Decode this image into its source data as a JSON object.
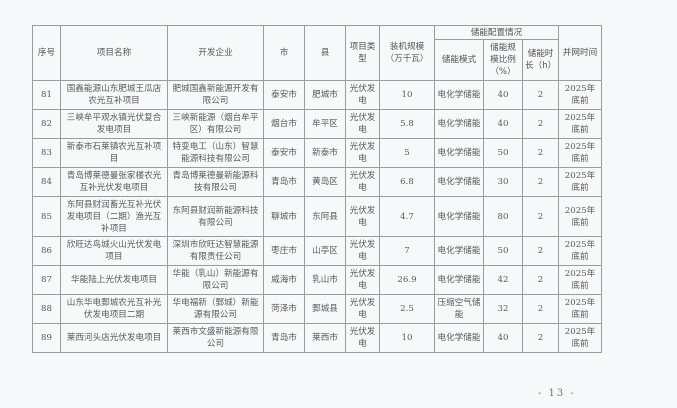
{
  "headers": {
    "seq": "序号",
    "name": "项目名称",
    "company": "开发企业",
    "city": "市",
    "county": "县",
    "type": "项目类型",
    "capacity": "装机规模（万千瓦）",
    "storage_group": "储能配置情况",
    "storage_mode": "储能模式",
    "storage_ratio": "储能规模比例（%）",
    "storage_duration": "储能时长（h）",
    "grid_time": "并网时间"
  },
  "rows": [
    {
      "seq": "81",
      "name": "国鑫能源山东肥城王瓜店农光互补项目",
      "company": "肥城国鑫新能源开发有限公司",
      "city": "泰安市",
      "county": "肥城市",
      "type": "光伏发电",
      "capacity": "10",
      "mode": "电化学储能",
      "ratio": "40",
      "duration": "2",
      "grid": "2025年底前"
    },
    {
      "seq": "82",
      "name": "三峡牟平观水镇光伏复合发电项目",
      "company": "三峡新能源（烟台牟平区）有限公司",
      "city": "烟台市",
      "county": "牟平区",
      "type": "光伏发电",
      "capacity": "5.8",
      "mode": "电化学储能",
      "ratio": "40",
      "duration": "2",
      "grid": "2025年底前"
    },
    {
      "seq": "83",
      "name": "新泰市石莱镇农光互补项目",
      "company": "特变电工（山东）智慧能源科技有限公司",
      "city": "泰安市",
      "county": "新泰市",
      "type": "光伏发电",
      "capacity": "5",
      "mode": "电化学储能",
      "ratio": "50",
      "duration": "2",
      "grid": "2025年底前"
    },
    {
      "seq": "84",
      "name": "青岛博莱德曼张家楼农光互补光伏发电项目",
      "company": "青岛博莱德曼新能源科技有限公司",
      "city": "青岛市",
      "county": "黄岛区",
      "type": "光伏发电",
      "capacity": "6.8",
      "mode": "电化学储能",
      "ratio": "30",
      "duration": "2",
      "grid": "2025年底前"
    },
    {
      "seq": "85",
      "name": "东阿县财润畜光互补光伏发电项目（二期）渔光互补项目",
      "company": "东阿县财润新能源科技有限公司",
      "city": "聊城市",
      "county": "东阿县",
      "type": "光伏发电",
      "capacity": "4.7",
      "mode": "电化学储能",
      "ratio": "80",
      "duration": "2",
      "grid": "2025年底前"
    },
    {
      "seq": "86",
      "name": "欣旺达鸟城火山光伏发电项目",
      "company": "深圳市欣旺达智慧能源有限责任公司",
      "city": "枣庄市",
      "county": "山亭区",
      "type": "光伏发电",
      "capacity": "7",
      "mode": "电化学储能",
      "ratio": "50",
      "duration": "2",
      "grid": "2025年底前"
    },
    {
      "seq": "87",
      "name": "华能陆上光伏发电项目",
      "company": "华能（乳山）新能源有限公司",
      "city": "威海市",
      "county": "乳山市",
      "type": "光伏发电",
      "capacity": "26.9",
      "mode": "电化学储能",
      "ratio": "42",
      "duration": "2",
      "grid": "2025年底前"
    },
    {
      "seq": "88",
      "name": "山东华电鄄城农光互补光伏发电项目二期",
      "company": "华电福新（鄄城）新能源有限公司",
      "city": "菏泽市",
      "county": "鄄城县",
      "type": "光伏发电",
      "capacity": "2.5",
      "mode": "压缩空气储能",
      "ratio": "32",
      "duration": "2",
      "grid": "2025年底前"
    },
    {
      "seq": "89",
      "name": "莱西河头店光伏发电项目",
      "company": "莱西市文盛新能源有限公司",
      "city": "青岛市",
      "county": "莱西市",
      "type": "光伏发电",
      "capacity": "10",
      "mode": "电化学储能",
      "ratio": "40",
      "duration": "2",
      "grid": "2025年底前"
    }
  ],
  "page_number": "- 13 -"
}
